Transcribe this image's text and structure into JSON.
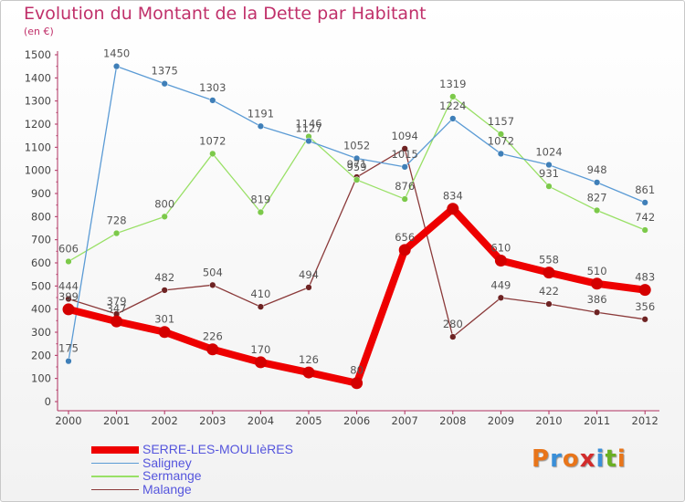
{
  "title": "Evolution du Montant de la Dette par Habitant",
  "subtitle": "(en €)",
  "logo": {
    "text": "Proxiti",
    "colors": [
      "#e8751a",
      "#3a8fd8",
      "#e8751a",
      "#d22c2c",
      "#3a8fd8",
      "#6ab023",
      "#e8751a"
    ]
  },
  "chart_data": {
    "type": "line",
    "categories": [
      "2000",
      "2001",
      "2002",
      "2003",
      "2004",
      "2005",
      "2006",
      "2007",
      "2008",
      "2009",
      "2010",
      "2011",
      "2012"
    ],
    "ylim": [
      0,
      1500
    ],
    "yticks": [
      0,
      100,
      200,
      300,
      400,
      500,
      600,
      700,
      800,
      900,
      1000,
      1100,
      1200,
      1300,
      1400,
      1500
    ],
    "grid": false,
    "legend_position": "bottom-left",
    "series": [
      {
        "name": "SERRE-LES-MOULIèRES",
        "color": "#ee0000",
        "values": [
          399,
          347,
          301,
          226,
          170,
          126,
          80,
          656,
          834,
          610,
          558,
          510,
          483
        ]
      },
      {
        "name": "Saligney",
        "color": "#5b9bd5",
        "values": [
          175,
          1450,
          1375,
          1303,
          1191,
          1127,
          1052,
          1015,
          1224,
          1072,
          1024,
          948,
          861
        ]
      },
      {
        "name": "Sermange",
        "color": "#99e066",
        "values": [
          606,
          728,
          800,
          1072,
          819,
          1146,
          959,
          876,
          1319,
          1157,
          931,
          827,
          742
        ]
      },
      {
        "name": "Malange",
        "color": "#8b3a3a",
        "values": [
          444,
          379,
          482,
          504,
          410,
          494,
          971,
          1094,
          280,
          449,
          422,
          386,
          356
        ]
      }
    ]
  }
}
